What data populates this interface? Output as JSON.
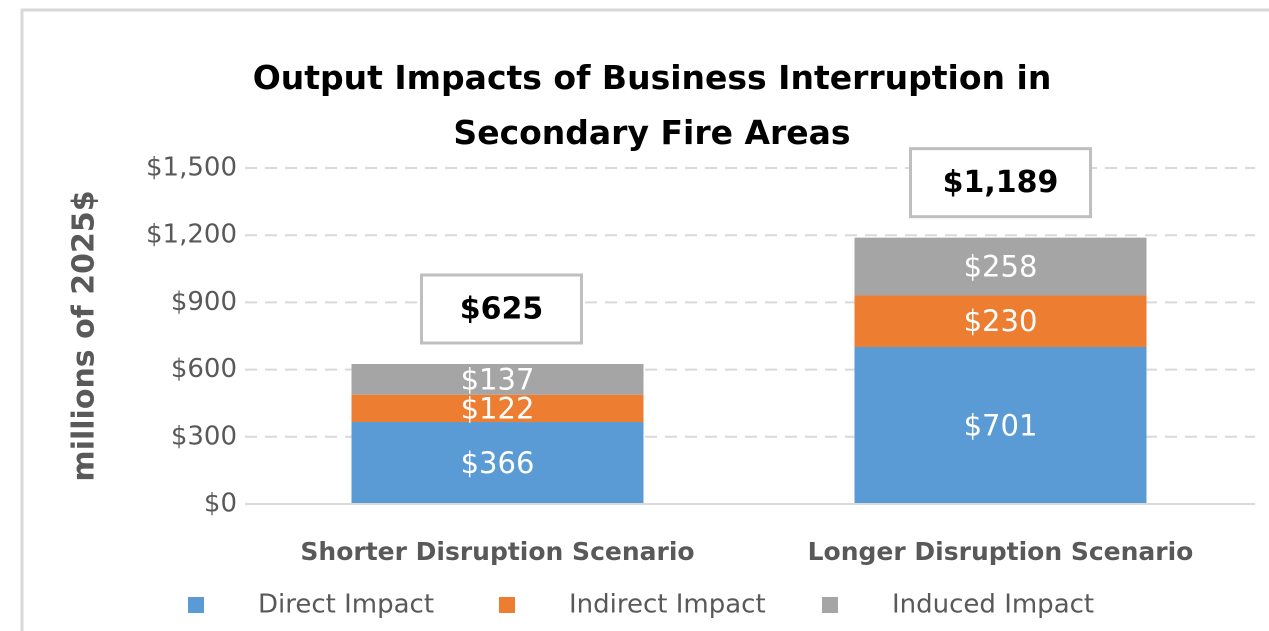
{
  "chart_data": {
    "type": "stacked_bar",
    "title": "Output Impacts of Business Interruption in Secondary Fire Areas",
    "ylabel": "millions of 2025$",
    "categories": [
      "Shorter Disruption Scenario",
      "Longer Disruption Scenario"
    ],
    "series": [
      {
        "name": "Direct Impact",
        "color": "#5b9bd5",
        "values": [
          366,
          701
        ],
        "value_labels": [
          "$366",
          "$701"
        ]
      },
      {
        "name": "Indirect Impact",
        "color": "#ed7d31",
        "values": [
          122,
          230
        ],
        "value_labels": [
          "$122",
          "$230"
        ]
      },
      {
        "name": "Induced Impact",
        "color": "#a5a5a5",
        "values": [
          137,
          258
        ],
        "value_labels": [
          "$137",
          "$258"
        ]
      }
    ],
    "totals": [
      625,
      1189
    ],
    "total_labels": [
      "$625",
      "$1,189"
    ],
    "ylim": [
      0,
      1500
    ],
    "yticks": [
      {
        "value": 0,
        "label": "$0"
      },
      {
        "value": 300,
        "label": "$300"
      },
      {
        "value": 600,
        "label": "$600"
      },
      {
        "value": 900,
        "label": "$900"
      },
      {
        "value": 1200,
        "label": "$1,200"
      },
      {
        "value": 1500,
        "label": "$1,500"
      }
    ],
    "grid": true,
    "legend": "bottom"
  }
}
